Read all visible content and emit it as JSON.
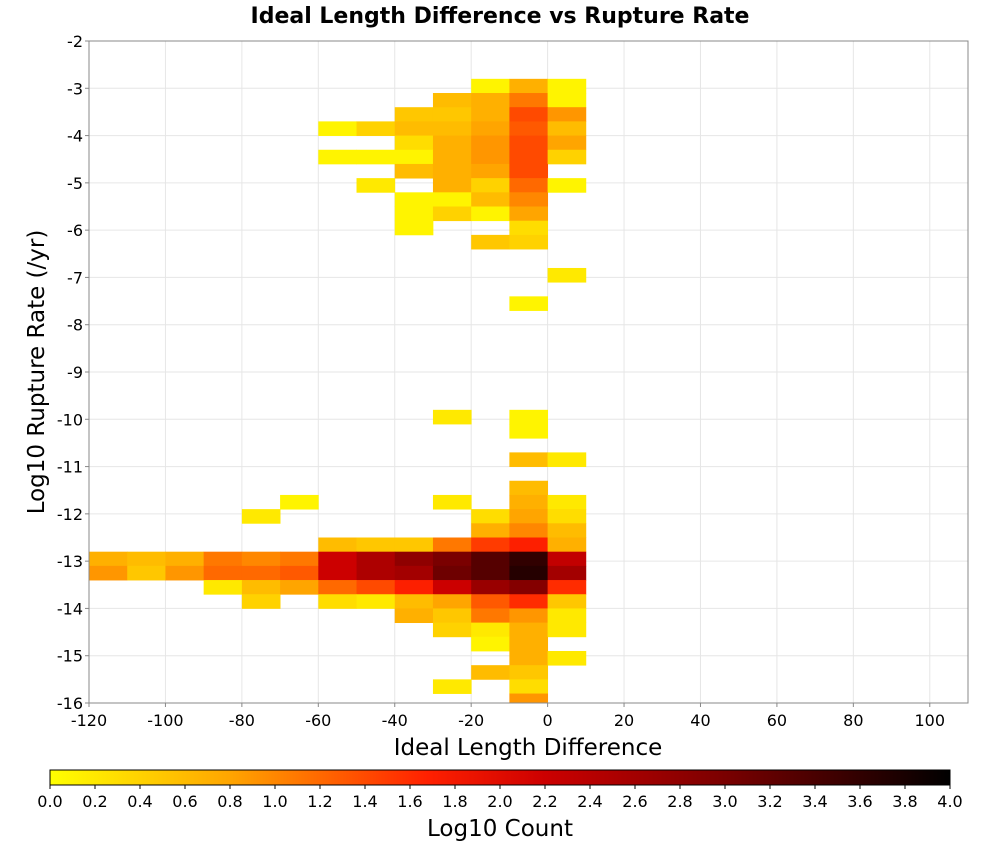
{
  "chart_data": {
    "type": "heatmap",
    "title": "Ideal Length Difference vs Rupture Rate",
    "xlabel": "Ideal Length Difference",
    "ylabel": "Log10 Rupture Rate (/yr)",
    "xlim": [
      -120,
      110
    ],
    "ylim": [
      -16,
      -2
    ],
    "x_ticks": [
      -120,
      -100,
      -80,
      -60,
      -40,
      -20,
      0,
      20,
      40,
      60,
      80,
      100
    ],
    "y_ticks": [
      -2,
      -3,
      -4,
      -5,
      -6,
      -7,
      -8,
      -9,
      -10,
      -11,
      -12,
      -13,
      -14,
      -15,
      -16
    ],
    "x_bin_width": 10,
    "y_bin_height": 0.3,
    "grid": true,
    "colorbar": {
      "label": "Log10 Count",
      "range": [
        0,
        4
      ],
      "ticks": [
        "0.0",
        "0.2",
        "0.4",
        "0.6",
        "0.8",
        "1.0",
        "1.2",
        "1.4",
        "1.6",
        "1.8",
        "2.0",
        "2.2",
        "2.4",
        "2.6",
        "2.8",
        "3.0",
        "3.2",
        "3.4",
        "3.6",
        "3.8",
        "4.0"
      ],
      "colors": [
        "#ffff00",
        "#ffa500",
        "#ff2000",
        "#cc0000",
        "#7a0000",
        "#000000"
      ]
    },
    "cells": [
      {
        "x": -20,
        "y": -3.1,
        "v": 0.1
      },
      {
        "x": -10,
        "y": -3.1,
        "v": 0.7
      },
      {
        "x": 0,
        "y": -3.1,
        "v": 0.1
      },
      {
        "x": -30,
        "y": -3.4,
        "v": 0.6
      },
      {
        "x": -20,
        "y": -3.4,
        "v": 0.7
      },
      {
        "x": -10,
        "y": -3.4,
        "v": 1.1
      },
      {
        "x": 0,
        "y": -3.4,
        "v": 0.1
      },
      {
        "x": -40,
        "y": -3.7,
        "v": 0.5
      },
      {
        "x": -30,
        "y": -3.7,
        "v": 0.5
      },
      {
        "x": -20,
        "y": -3.7,
        "v": 0.7
      },
      {
        "x": -10,
        "y": -3.7,
        "v": 1.4
      },
      {
        "x": 0,
        "y": -3.7,
        "v": 0.9
      },
      {
        "x": -60,
        "y": -4.0,
        "v": 0.1
      },
      {
        "x": -50,
        "y": -4.0,
        "v": 0.4
      },
      {
        "x": -40,
        "y": -4.0,
        "v": 0.6
      },
      {
        "x": -30,
        "y": -4.0,
        "v": 0.6
      },
      {
        "x": -20,
        "y": -4.0,
        "v": 0.8
      },
      {
        "x": -10,
        "y": -4.0,
        "v": 1.3
      },
      {
        "x": 0,
        "y": -4.0,
        "v": 0.6
      },
      {
        "x": -40,
        "y": -4.3,
        "v": 0.3
      },
      {
        "x": -30,
        "y": -4.3,
        "v": 0.7
      },
      {
        "x": -20,
        "y": -4.3,
        "v": 0.9
      },
      {
        "x": -10,
        "y": -4.3,
        "v": 1.4
      },
      {
        "x": 0,
        "y": -4.3,
        "v": 0.8
      },
      {
        "x": -60,
        "y": -4.6,
        "v": 0.1
      },
      {
        "x": -50,
        "y": -4.6,
        "v": 0.1
      },
      {
        "x": -40,
        "y": -4.6,
        "v": 0.1
      },
      {
        "x": -30,
        "y": -4.6,
        "v": 0.7
      },
      {
        "x": -20,
        "y": -4.6,
        "v": 0.9
      },
      {
        "x": -10,
        "y": -4.6,
        "v": 1.4
      },
      {
        "x": 0,
        "y": -4.6,
        "v": 0.4
      },
      {
        "x": -40,
        "y": -4.9,
        "v": 0.6
      },
      {
        "x": -30,
        "y": -4.9,
        "v": 0.7
      },
      {
        "x": -20,
        "y": -4.9,
        "v": 0.8
      },
      {
        "x": -10,
        "y": -4.9,
        "v": 1.4
      },
      {
        "x": -50,
        "y": -5.2,
        "v": 0.2
      },
      {
        "x": -30,
        "y": -5.2,
        "v": 0.7
      },
      {
        "x": -20,
        "y": -5.2,
        "v": 0.4
      },
      {
        "x": -10,
        "y": -5.2,
        "v": 1.2
      },
      {
        "x": 0,
        "y": -5.2,
        "v": 0.1
      },
      {
        "x": -40,
        "y": -5.5,
        "v": 0.1
      },
      {
        "x": -30,
        "y": -5.5,
        "v": 0.1
      },
      {
        "x": -20,
        "y": -5.5,
        "v": 0.6
      },
      {
        "x": -10,
        "y": -5.5,
        "v": 1.0
      },
      {
        "x": -40,
        "y": -5.8,
        "v": 0.1
      },
      {
        "x": -30,
        "y": -5.8,
        "v": 0.4
      },
      {
        "x": -20,
        "y": -5.8,
        "v": 0.1
      },
      {
        "x": -10,
        "y": -5.8,
        "v": 0.8
      },
      {
        "x": -40,
        "y": -6.1,
        "v": 0.1
      },
      {
        "x": -10,
        "y": -6.1,
        "v": 0.3
      },
      {
        "x": -20,
        "y": -6.4,
        "v": 0.5
      },
      {
        "x": -10,
        "y": -6.4,
        "v": 0.4
      },
      {
        "x": 0,
        "y": -7.1,
        "v": 0.2
      },
      {
        "x": -10,
        "y": -7.7,
        "v": 0.1
      },
      {
        "x": -30,
        "y": -10.1,
        "v": 0.2
      },
      {
        "x": -10,
        "y": -10.1,
        "v": 0.1
      },
      {
        "x": -10,
        "y": -10.4,
        "v": 0.1
      },
      {
        "x": -10,
        "y": -11.0,
        "v": 0.6
      },
      {
        "x": 0,
        "y": -11.0,
        "v": 0.2
      },
      {
        "x": -10,
        "y": -11.6,
        "v": 0.6
      },
      {
        "x": -70,
        "y": -11.9,
        "v": 0.1
      },
      {
        "x": -30,
        "y": -11.9,
        "v": 0.2
      },
      {
        "x": -10,
        "y": -11.9,
        "v": 0.7
      },
      {
        "x": 0,
        "y": -11.9,
        "v": 0.2
      },
      {
        "x": -80,
        "y": -12.2,
        "v": 0.2
      },
      {
        "x": -20,
        "y": -12.2,
        "v": 0.3
      },
      {
        "x": -10,
        "y": -12.2,
        "v": 0.8
      },
      {
        "x": 0,
        "y": -12.2,
        "v": 0.3
      },
      {
        "x": -20,
        "y": -12.5,
        "v": 0.7
      },
      {
        "x": -10,
        "y": -12.5,
        "v": 1.0
      },
      {
        "x": 0,
        "y": -12.5,
        "v": 0.6
      },
      {
        "x": -60,
        "y": -12.8,
        "v": 0.6
      },
      {
        "x": -50,
        "y": -12.8,
        "v": 0.5
      },
      {
        "x": -40,
        "y": -12.8,
        "v": 0.5
      },
      {
        "x": -30,
        "y": -12.8,
        "v": 1.1
      },
      {
        "x": -20,
        "y": -12.8,
        "v": 1.5
      },
      {
        "x": -10,
        "y": -12.8,
        "v": 1.7
      },
      {
        "x": 0,
        "y": -12.8,
        "v": 0.7
      },
      {
        "x": -120,
        "y": -13.1,
        "v": 0.7
      },
      {
        "x": -110,
        "y": -13.1,
        "v": 0.6
      },
      {
        "x": -100,
        "y": -13.1,
        "v": 0.7
      },
      {
        "x": -90,
        "y": -13.1,
        "v": 1.1
      },
      {
        "x": -80,
        "y": -13.1,
        "v": 1.0
      },
      {
        "x": -70,
        "y": -13.1,
        "v": 1.1
      },
      {
        "x": -60,
        "y": -13.1,
        "v": 2.2
      },
      {
        "x": -50,
        "y": -13.1,
        "v": 2.5
      },
      {
        "x": -40,
        "y": -13.1,
        "v": 2.8
      },
      {
        "x": -30,
        "y": -13.1,
        "v": 3.0
      },
      {
        "x": -20,
        "y": -13.1,
        "v": 3.3
      },
      {
        "x": -10,
        "y": -13.1,
        "v": 3.6
      },
      {
        "x": 0,
        "y": -13.1,
        "v": 2.3
      },
      {
        "x": -120,
        "y": -13.4,
        "v": 0.9
      },
      {
        "x": -110,
        "y": -13.4,
        "v": 0.5
      },
      {
        "x": -100,
        "y": -13.4,
        "v": 0.9
      },
      {
        "x": -90,
        "y": -13.4,
        "v": 1.2
      },
      {
        "x": -80,
        "y": -13.4,
        "v": 1.2
      },
      {
        "x": -70,
        "y": -13.4,
        "v": 1.3
      },
      {
        "x": -60,
        "y": -13.4,
        "v": 2.2
      },
      {
        "x": -50,
        "y": -13.4,
        "v": 2.5
      },
      {
        "x": -40,
        "y": -13.4,
        "v": 2.6
      },
      {
        "x": -30,
        "y": -13.4,
        "v": 3.1
      },
      {
        "x": -20,
        "y": -13.4,
        "v": 3.3
      },
      {
        "x": -10,
        "y": -13.4,
        "v": 3.7
      },
      {
        "x": 0,
        "y": -13.4,
        "v": 2.6
      },
      {
        "x": -90,
        "y": -13.7,
        "v": 0.2
      },
      {
        "x": -80,
        "y": -13.7,
        "v": 0.6
      },
      {
        "x": -70,
        "y": -13.7,
        "v": 0.8
      },
      {
        "x": -60,
        "y": -13.7,
        "v": 1.2
      },
      {
        "x": -50,
        "y": -13.7,
        "v": 1.4
      },
      {
        "x": -40,
        "y": -13.7,
        "v": 1.7
      },
      {
        "x": -30,
        "y": -13.7,
        "v": 2.2
      },
      {
        "x": -20,
        "y": -13.7,
        "v": 2.7
      },
      {
        "x": -10,
        "y": -13.7,
        "v": 2.9
      },
      {
        "x": 0,
        "y": -13.7,
        "v": 1.6
      },
      {
        "x": -80,
        "y": -14.0,
        "v": 0.4
      },
      {
        "x": -60,
        "y": -14.0,
        "v": 0.3
      },
      {
        "x": -50,
        "y": -14.0,
        "v": 0.2
      },
      {
        "x": -40,
        "y": -14.0,
        "v": 0.6
      },
      {
        "x": -30,
        "y": -14.0,
        "v": 0.8
      },
      {
        "x": -20,
        "y": -14.0,
        "v": 1.3
      },
      {
        "x": -10,
        "y": -14.0,
        "v": 1.6
      },
      {
        "x": 0,
        "y": -14.0,
        "v": 0.5
      },
      {
        "x": -40,
        "y": -14.3,
        "v": 0.7
      },
      {
        "x": -30,
        "y": -14.3,
        "v": 0.5
      },
      {
        "x": -20,
        "y": -14.3,
        "v": 1.1
      },
      {
        "x": -10,
        "y": -14.3,
        "v": 0.9
      },
      {
        "x": 0,
        "y": -14.3,
        "v": 0.2
      },
      {
        "x": -30,
        "y": -14.6,
        "v": 0.4
      },
      {
        "x": -20,
        "y": -14.6,
        "v": 0.2
      },
      {
        "x": -10,
        "y": -14.6,
        "v": 0.7
      },
      {
        "x": 0,
        "y": -14.6,
        "v": 0.2
      },
      {
        "x": -20,
        "y": -14.9,
        "v": 0.1
      },
      {
        "x": -10,
        "y": -14.9,
        "v": 0.7
      },
      {
        "x": -10,
        "y": -15.2,
        "v": 0.7
      },
      {
        "x": 0,
        "y": -15.2,
        "v": 0.2
      },
      {
        "x": -20,
        "y": -15.5,
        "v": 0.6
      },
      {
        "x": -10,
        "y": -15.5,
        "v": 0.5
      },
      {
        "x": -30,
        "y": -15.8,
        "v": 0.2
      },
      {
        "x": -10,
        "y": -15.8,
        "v": 0.3
      },
      {
        "x": -10,
        "y": -16.1,
        "v": 0.9
      },
      {
        "x": -100,
        "y": -16.4,
        "v": 0.2
      },
      {
        "x": -80,
        "y": -16.4,
        "v": 0.7
      },
      {
        "x": -70,
        "y": -16.4,
        "v": 1.2
      },
      {
        "x": -60,
        "y": -16.4,
        "v": 1.3
      },
      {
        "x": -50,
        "y": -16.4,
        "v": 1.3
      },
      {
        "x": -40,
        "y": -16.4,
        "v": 2.5
      },
      {
        "x": -30,
        "y": -16.4,
        "v": 2.8
      },
      {
        "x": -20,
        "y": -16.4,
        "v": 3.5
      },
      {
        "x": -10,
        "y": -16.4,
        "v": 3.9
      },
      {
        "x": 0,
        "y": -16.4,
        "v": 3.0
      }
    ]
  }
}
